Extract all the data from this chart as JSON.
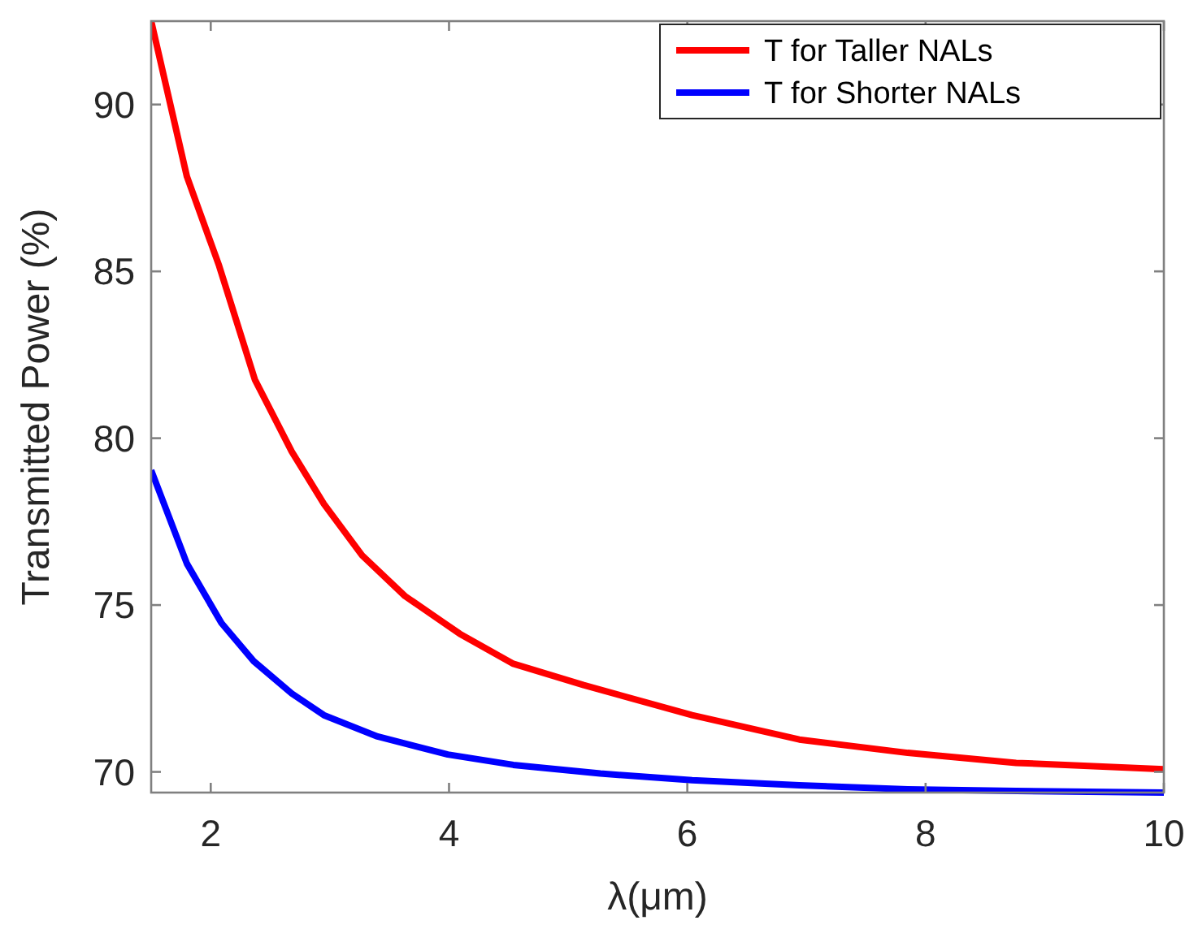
{
  "chart_data": {
    "type": "line",
    "xlabel": "λ(μm)",
    "ylabel": "Transmitted Power (%)",
    "xlim": [
      1.5,
      10
    ],
    "xticks": [
      2,
      4,
      6,
      8,
      10
    ],
    "ylim": [
      69.38,
      92.5
    ],
    "yticks": [
      70,
      75,
      80,
      85,
      90
    ],
    "grid": false,
    "legend": "top right",
    "marker": "none",
    "line_style": "solid",
    "series": [
      {
        "name": "T for Taller NALs",
        "color": "#ff0000",
        "x": [
          1.5,
          1.8,
          2.07,
          2.37,
          2.68,
          2.95,
          3.27,
          3.63,
          4.09,
          4.54,
          5.13,
          6.04,
          6.94,
          7.85,
          8.76,
          10
        ],
        "values": [
          92.5,
          87.84,
          85.17,
          81.76,
          79.6,
          78.03,
          76.49,
          75.27,
          74.14,
          73.24,
          72.6,
          71.7,
          70.97,
          70.57,
          70.27,
          70.08
        ]
      },
      {
        "name": "T for Shorter NALs",
        "color": "#0000ff",
        "x": [
          1.5,
          1.8,
          2.09,
          2.36,
          2.68,
          2.95,
          3.4,
          3.99,
          4.54,
          5.27,
          6.04,
          6.94,
          7.85,
          8.76,
          10
        ],
        "values": [
          79.04,
          76.24,
          74.46,
          73.32,
          72.35,
          71.7,
          71.06,
          70.52,
          70.21,
          69.95,
          69.75,
          69.6,
          69.48,
          69.43,
          69.38
        ]
      }
    ]
  }
}
